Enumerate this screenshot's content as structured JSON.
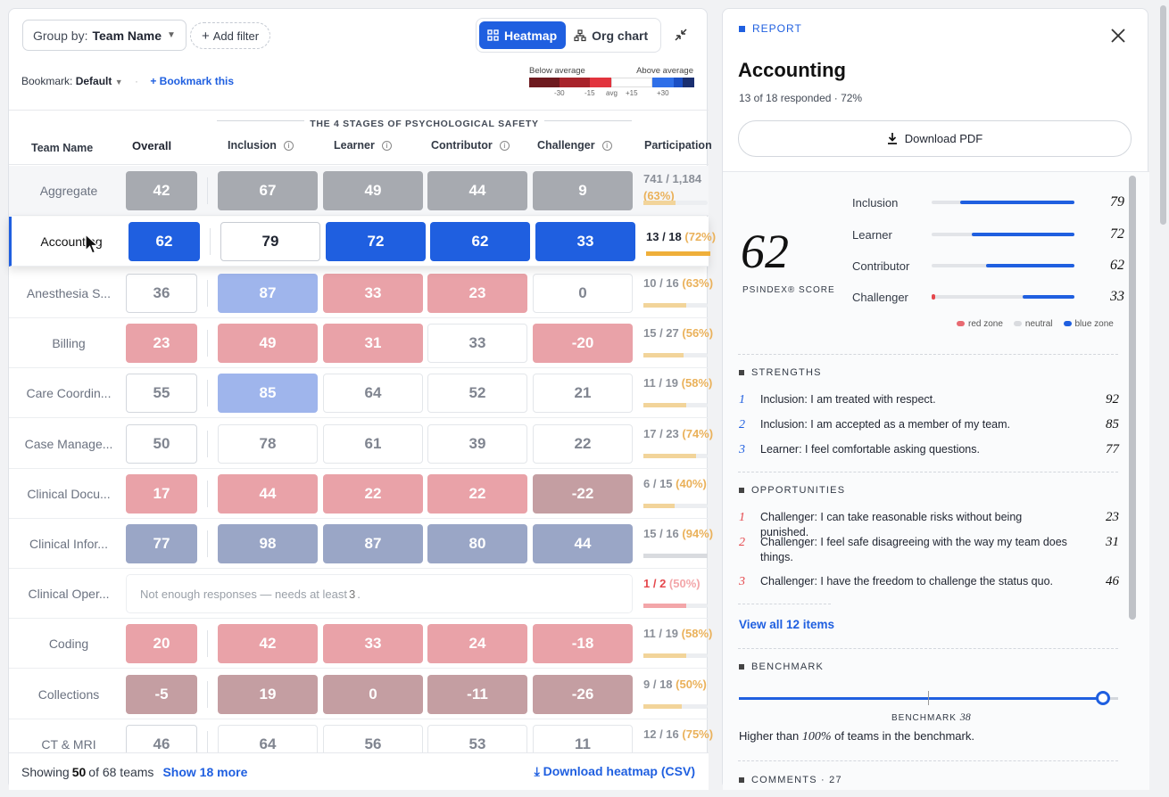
{
  "toolbar": {
    "group_by_label": "Group by:",
    "group_by_value": "Team Name",
    "add_filter": "Add filter",
    "view_heatmap": "Heatmap",
    "view_orgchart": "Org chart",
    "bookmark_label": "Bookmark:",
    "bookmark_value": "Default",
    "bookmark_add": "+ Bookmark this"
  },
  "legend": {
    "below": "Below average",
    "above": "Above average",
    "ticks": [
      "-30",
      "-15",
      "avg",
      "+15",
      "+30"
    ],
    "colors": [
      "#6e1a1f",
      "#a8232b",
      "#e2343e",
      "#ffffff",
      "#2f6fe8",
      "#1b4fc4",
      "#1a2f70"
    ]
  },
  "table": {
    "stages_title": "THE 4 STAGES OF PSYCHOLOGICAL SAFETY",
    "headers": {
      "team": "Team Name",
      "overall": "Overall",
      "inclusion": "Inclusion",
      "learner": "Learner",
      "contributor": "Contributor",
      "challenger": "Challenger",
      "participation": "Participation"
    },
    "info_icon": "i",
    "rows": [
      {
        "name": "Aggregate",
        "overall": "42",
        "inclusion": "67",
        "learner": "49",
        "contributor": "44",
        "challenger": "9",
        "participation": "741 / 1,184",
        "pct": "(63%)"
      },
      {
        "name": "Accounting",
        "overall": "62",
        "inclusion": "79",
        "learner": "72",
        "contributor": "62",
        "challenger": "33",
        "participation": "13 / 18",
        "pct": "(72%)"
      },
      {
        "name": "Anesthesia S...",
        "overall": "36",
        "inclusion": "87",
        "learner": "33",
        "contributor": "23",
        "challenger": "0",
        "participation": "10 / 16",
        "pct": "(63%)"
      },
      {
        "name": "Billing",
        "overall": "23",
        "inclusion": "49",
        "learner": "31",
        "contributor": "33",
        "challenger": "-20",
        "participation": "15 / 27",
        "pct": "(56%)"
      },
      {
        "name": "Care Coordin...",
        "overall": "55",
        "inclusion": "85",
        "learner": "64",
        "contributor": "52",
        "challenger": "21",
        "participation": "11 / 19",
        "pct": "(58%)"
      },
      {
        "name": "Case Manage...",
        "overall": "50",
        "inclusion": "78",
        "learner": "61",
        "contributor": "39",
        "challenger": "22",
        "participation": "17 / 23",
        "pct": "(74%)"
      },
      {
        "name": "Clinical Docu...",
        "overall": "17",
        "inclusion": "44",
        "learner": "22",
        "contributor": "22",
        "challenger": "-22",
        "participation": "6 / 15",
        "pct": "(40%)"
      },
      {
        "name": "Clinical Infor...",
        "overall": "77",
        "inclusion": "98",
        "learner": "87",
        "contributor": "80",
        "challenger": "44",
        "participation": "15 / 16",
        "pct": "(94%)"
      },
      {
        "name": "Clinical Oper...",
        "notenough_pre": "Not enough responses — needs at least",
        "notenough_num": "3",
        "notenough_post": ".",
        "participation": "1 / 2",
        "pct": "(50%)"
      },
      {
        "name": "Coding",
        "overall": "20",
        "inclusion": "42",
        "learner": "33",
        "contributor": "24",
        "challenger": "-18",
        "participation": "11 / 19",
        "pct": "(58%)"
      },
      {
        "name": "Collections",
        "overall": "-5",
        "inclusion": "19",
        "learner": "0",
        "contributor": "-11",
        "challenger": "-26",
        "participation": "9 / 18",
        "pct": "(50%)"
      },
      {
        "name": "CT & MRI",
        "overall": "46",
        "inclusion": "64",
        "learner": "56",
        "contributor": "53",
        "challenger": "11",
        "participation": "12 / 16",
        "pct": "(75%)"
      }
    ]
  },
  "footer": {
    "showing_pre": "Showing",
    "showing_count": "50",
    "showing_post": "of 68 teams",
    "show_more": "Show 18 more",
    "download_csv": "Download heatmap (CSV)"
  },
  "panel": {
    "tag": "REPORT",
    "title": "Accounting",
    "subtitle": "13 of 18 responded · 72%",
    "download_pdf": "Download PDF",
    "score": "62",
    "score_label": "PSINDEX® SCORE",
    "stages": [
      {
        "label": "Inclusion",
        "value": "79"
      },
      {
        "label": "Learner",
        "value": "72"
      },
      {
        "label": "Contributor",
        "value": "62"
      },
      {
        "label": "Challenger",
        "value": "33"
      }
    ],
    "zones": [
      "red zone",
      "neutral",
      "blue zone"
    ],
    "strengths_title": "STRENGTHS",
    "strengths": [
      {
        "n": "1",
        "text": "Inclusion: I am treated with respect.",
        "score": "92"
      },
      {
        "n": "2",
        "text": "Inclusion: I am accepted as a member of my team.",
        "score": "85"
      },
      {
        "n": "3",
        "text": "Learner: I feel comfortable asking questions.",
        "score": "77"
      }
    ],
    "opportunities_title": "OPPORTUNITIES",
    "opportunities": [
      {
        "n": "1",
        "text": "Challenger: I can take reasonable risks without being punished.",
        "score": "23"
      },
      {
        "n": "2",
        "text": "Challenger: I feel safe disagreeing with the way my team does things.",
        "score": "31"
      },
      {
        "n": "3",
        "text": "Challenger: I have the freedom to challenge the status quo.",
        "score": "46"
      }
    ],
    "view_all": "View all 12 items",
    "benchmark_title": "BENCHMARK",
    "benchmark_label": "BENCHMARK",
    "benchmark_value": "38",
    "benchmark_text_pre": "Higher than",
    "benchmark_pct": "100%",
    "benchmark_text_post": "of teams in the benchmark.",
    "comments_title": "COMMENTS · 27"
  }
}
